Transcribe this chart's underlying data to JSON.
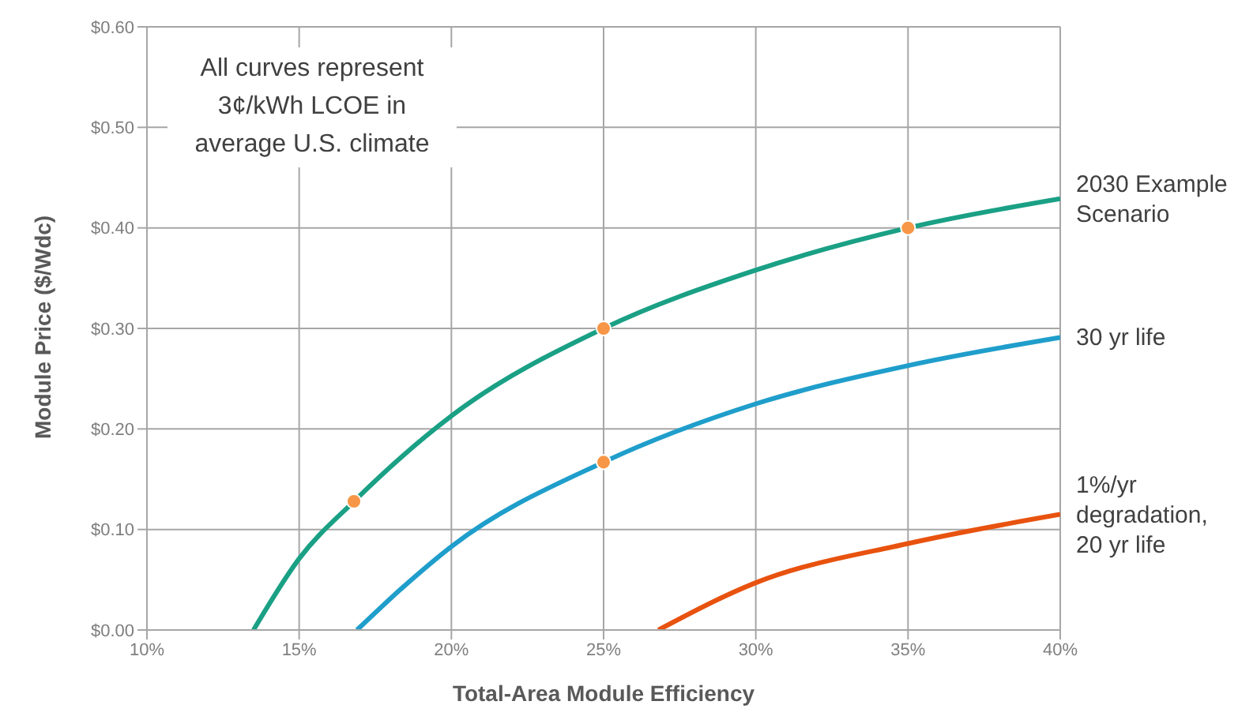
{
  "chart_data": {
    "type": "line",
    "xlabel": "Total-Area Module Efficiency",
    "ylabel": "Module Price ($/Wdc)",
    "xlim": [
      10,
      40
    ],
    "xticks": [
      {
        "value": 10,
        "label": "10%"
      },
      {
        "value": 15,
        "label": "15%"
      },
      {
        "value": 20,
        "label": "20%"
      },
      {
        "value": 25,
        "label": "25%"
      },
      {
        "value": 30,
        "label": "30%"
      },
      {
        "value": 35,
        "label": "35%"
      },
      {
        "value": 40,
        "label": "40%"
      }
    ],
    "ylim": [
      0,
      0.6
    ],
    "yticks": [
      {
        "value": 0,
        "label": "$0.00"
      },
      {
        "value": 0.1,
        "label": "$0.10"
      },
      {
        "value": 0.2,
        "label": "$0.20"
      },
      {
        "value": 0.3,
        "label": "$0.30"
      },
      {
        "value": 0.4,
        "label": "$0.40"
      },
      {
        "value": 0.5,
        "label": "$0.50"
      },
      {
        "value": 0.6,
        "label": "$0.60"
      }
    ],
    "grid": true,
    "legend": false,
    "marker": "none",
    "line_style": "solid",
    "annotations": [
      "All curves represent 3¢/kWh LCOE in average U.S. climate"
    ],
    "series": [
      {
        "name": "2030 Example Scenario",
        "color": "#1aa085",
        "x": [
          13.5,
          15,
          16.8,
          20,
          25,
          30,
          35,
          40
        ],
        "values": [
          0,
          0.071,
          0.128,
          0.213,
          0.3,
          0.358,
          0.4,
          0.429
        ]
      },
      {
        "name": "30 yr life",
        "color": "#1f9ecb",
        "x": [
          16.9,
          18.5,
          20,
          25,
          30,
          35,
          40
        ],
        "values": [
          0,
          0.045,
          0.083,
          0.167,
          0.225,
          0.263,
          0.291
        ]
      },
      {
        "name": "1%/yr degradation, 20 yr life",
        "color": "#e8520f",
        "x": [
          26.8,
          30,
          35,
          40
        ],
        "values": [
          0,
          0.047,
          0.086,
          0.115
        ]
      },
      {
        "type": "scatter",
        "marker": "circle",
        "color": "#f79646",
        "x": [
          16.8,
          25,
          25,
          35
        ],
        "values": [
          0.128,
          0.3,
          0.167,
          0.4
        ]
      }
    ]
  }
}
